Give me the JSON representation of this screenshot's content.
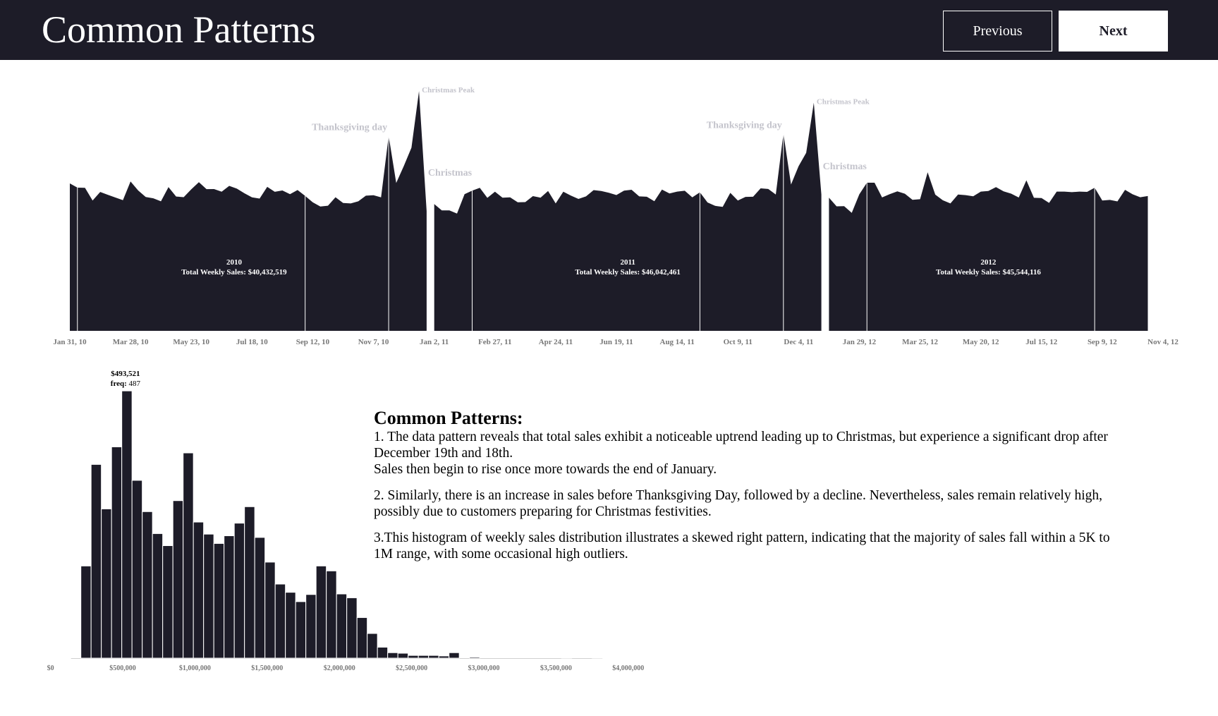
{
  "header": {
    "title": "Common Patterns",
    "previous_label": "Previous",
    "next_label": "Next"
  },
  "colors": {
    "header_bg": "#1d1c28",
    "area_fill": "#1d1c28",
    "annotation": "#c4c4cc",
    "axis_text": "#777777",
    "divider": "#ffffff"
  },
  "chart_data": [
    {
      "type": "area",
      "title": "",
      "xlabel": "",
      "ylabel": "",
      "units": "USD millions (weekly total sales)",
      "x_ticks": [
        "Jan 31, 10",
        "Mar 28, 10",
        "May 23, 10",
        "Jul 18, 10",
        "Sep 12, 10",
        "Nov 7, 10",
        "Jan 2, 11",
        "Feb 27, 11",
        "Apr 24, 11",
        "Jun 19, 11",
        "Aug 14, 11",
        "Oct 9, 11",
        "Dec 4, 11",
        "Jan 29, 12",
        "Mar 25, 12",
        "May 20, 12",
        "Jul 15, 12",
        "Sep 9, 12",
        "Nov 4, 12"
      ],
      "x_range": [
        "2010-01-31",
        "2012-11-04"
      ],
      "freq": "weekly",
      "grid": false,
      "series": [
        {
          "name": "2010",
          "start": "2010-01-31",
          "label": "2010",
          "sublabel": "Total Weekly Sales: $40,432,519",
          "holiday_weeks": [
            "2010-02-07",
            "2010-09-05",
            "2010-11-21"
          ],
          "values": [
            49.75,
            48.34,
            48.28,
            43.97,
            46.87,
            45.93,
            44.99,
            44.13,
            50.42,
            47.37,
            45.18,
            44.73,
            43.71,
            48.5,
            45.33,
            45.12,
            47.76,
            50.19,
            47.83,
            47.86,
            46.96,
            48.92,
            47.99,
            46.43,
            45.06,
            44.64,
            48.59,
            46.92,
            47.37,
            46.13,
            47.53,
            45.55,
            43.39,
            41.97,
            42.24,
            45.1,
            43.15,
            43.0,
            43.71,
            45.63,
            45.76,
            45.07,
            65.82,
            49.91,
            55.67,
            61.82,
            80.93,
            40.43
          ]
        },
        {
          "name": "2011",
          "start": "2011-01-02",
          "label": "2011",
          "sublabel": "Total Weekly Sales: $46,042,461",
          "holiday_weeks": [
            "2011-02-06",
            "2011-09-04",
            "2011-11-20"
          ],
          "values": [
            42.78,
            40.67,
            40.65,
            39.6,
            46.15,
            47.34,
            48.28,
            44.89,
            46.97,
            44.96,
            45.05,
            43.37,
            43.46,
            45.47,
            44.96,
            47.2,
            43.01,
            46.95,
            45.65,
            44.53,
            45.38,
            47.49,
            47.18,
            46.62,
            45.84,
            47.33,
            47.61,
            45.39,
            45.26,
            43.77,
            47.67,
            46.38,
            47.0,
            47.28,
            45.06,
            46.76,
            43.33,
            42.19,
            41.83,
            46.56,
            44.01,
            45.21,
            45.27,
            48.09,
            47.88,
            46.02,
            66.59,
            49.39,
            55.56,
            60.09,
            76.99,
            46.04
          ]
        },
        {
          "name": "2012",
          "start": "2012-01-01",
          "label": "2012",
          "sublabel": "Total Weekly Sales: $45,544,116",
          "holiday_weeks": [
            "2012-02-05",
            "2012-09-02"
          ],
          "values": [
            44.96,
            42.02,
            42.08,
            39.83,
            46.08,
            50.01,
            50.01,
            45.03,
            46.11,
            47.09,
            46.29,
            44.23,
            44.43,
            53.5,
            45.97,
            44.06,
            43.0,
            46.0,
            45.8,
            45.4,
            47.0,
            47.2,
            48.5,
            47.1,
            46.3,
            45.0,
            50.8,
            44.9,
            44.8,
            43.2,
            47.0,
            47.0,
            46.8,
            47.0,
            46.9,
            48.3,
            44.0,
            44.2,
            43.7,
            47.6,
            46.1,
            45.1,
            45.5
          ]
        }
      ],
      "annotations": [
        {
          "text": "Thanksgiving day",
          "date": "2010-11-21",
          "style": "large"
        },
        {
          "text": "Christmas Peak",
          "date": "2010-12-19",
          "style": "small"
        },
        {
          "text": "Christmas",
          "date": "2010-12-26",
          "style": "large"
        },
        {
          "text": "Thanksgiving day",
          "date": "2011-11-20",
          "style": "large"
        },
        {
          "text": "Christmas Peak",
          "date": "2011-12-18",
          "style": "small"
        },
        {
          "text": "Christmas",
          "date": "2011-12-25",
          "style": "large"
        }
      ]
    },
    {
      "type": "bar",
      "subtype": "histogram",
      "title": "",
      "xlabel": "",
      "ylabel": "",
      "bin_start": 210321,
      "bin_width": 70800,
      "values": [
        168,
        353,
        272,
        385,
        487,
        324,
        267,
        227,
        205,
        287,
        374,
        248,
        226,
        209,
        223,
        246,
        276,
        220,
        175,
        135,
        120,
        103,
        116,
        168,
        159,
        117,
        110,
        74,
        45,
        20,
        10,
        9,
        5,
        5,
        5,
        4,
        10,
        0,
        2,
        0,
        0,
        0,
        0,
        0,
        0,
        0,
        0,
        1,
        0,
        0,
        1
      ],
      "xlim": [
        0,
        4000000
      ],
      "x_ticks": [
        "$0",
        "$500,000",
        "$1,000,000",
        "$1,500,000",
        "$2,000,000",
        "$2,500,000",
        "$3,000,000",
        "$3,500,000",
        "$4,000,000"
      ],
      "x_tick_values": [
        0,
        500000,
        1000000,
        1500000,
        2000000,
        2500000,
        3000000,
        3500000,
        4000000
      ],
      "peak_label": {
        "value": "$493,521",
        "freq_prefix": "freq:",
        "freq": "487"
      }
    }
  ],
  "notes": {
    "heading": "Common Patterns:",
    "p1a": "1. The data pattern reveals that total sales exhibit a noticeable uptrend leading up to Christmas, but experience a significant drop after December 19th and 18th.",
    "p1b": "Sales then begin to rise once more towards the end of January.",
    "p2": "2. Similarly, there is an increase in sales before Thanksgiving Day, followed by a decline. Nevertheless, sales remain relatively high, possibly due to customers preparing for Christmas festivities.",
    "p3": "3.This histogram of weekly sales distribution illustrates a skewed right pattern, indicating that the majority of sales fall within a 5K to 1M range, with some occasional high outliers."
  }
}
